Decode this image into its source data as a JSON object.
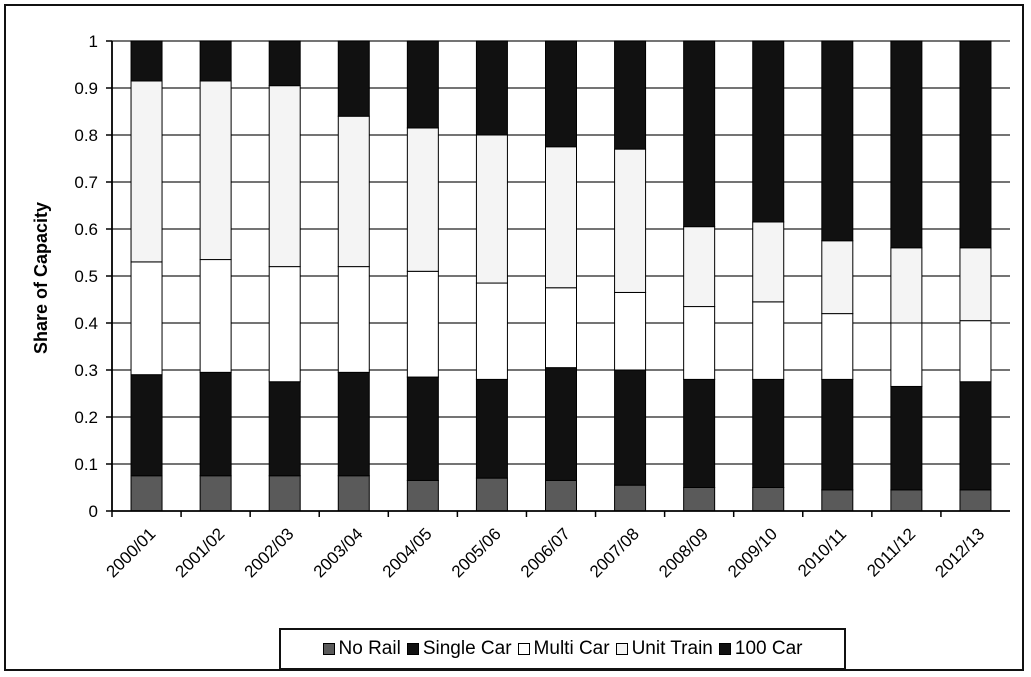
{
  "chart_data": {
    "type": "bar",
    "stacked": true,
    "ylabel": "Share of Capacity",
    "xlabel": "",
    "ylim": [
      0,
      1
    ],
    "yticks": [
      "0",
      "0.1",
      "0.2",
      "0.3",
      "0.4",
      "0.5",
      "0.6",
      "0.7",
      "0.8",
      "0.9",
      "1"
    ],
    "grid": true,
    "legend_position": "bottom",
    "categories": [
      "2000/01",
      "2001/02",
      "2002/03",
      "2003/04",
      "2004/05",
      "2005/06",
      "2006/07",
      "2007/08",
      "2008/09",
      "2009/10",
      "2010/11",
      "2011/12",
      "2012/13"
    ],
    "series": [
      {
        "name": "No Rail",
        "color": "#5a5a5a",
        "values": [
          0.075,
          0.075,
          0.075,
          0.075,
          0.065,
          0.07,
          0.065,
          0.055,
          0.05,
          0.05,
          0.045,
          0.045,
          0.045
        ]
      },
      {
        "name": "Single Car",
        "color": "#111111",
        "values": [
          0.215,
          0.22,
          0.2,
          0.22,
          0.22,
          0.21,
          0.24,
          0.245,
          0.23,
          0.23,
          0.235,
          0.22,
          0.23
        ]
      },
      {
        "name": "Multi Car",
        "color": "#ffffff",
        "values": [
          0.24,
          0.24,
          0.245,
          0.225,
          0.225,
          0.205,
          0.17,
          0.165,
          0.155,
          0.165,
          0.14,
          0.135,
          0.13
        ]
      },
      {
        "name": "Unit Train",
        "color": "#f4f4f4",
        "values": [
          0.385,
          0.38,
          0.385,
          0.32,
          0.305,
          0.315,
          0.3,
          0.305,
          0.17,
          0.17,
          0.155,
          0.16,
          0.155
        ]
      },
      {
        "name": "100 Car",
        "color": "#111111",
        "values": [
          0.085,
          0.085,
          0.095,
          0.16,
          0.185,
          0.2,
          0.225,
          0.23,
          0.395,
          0.385,
          0.425,
          0.44,
          0.44
        ]
      }
    ]
  }
}
